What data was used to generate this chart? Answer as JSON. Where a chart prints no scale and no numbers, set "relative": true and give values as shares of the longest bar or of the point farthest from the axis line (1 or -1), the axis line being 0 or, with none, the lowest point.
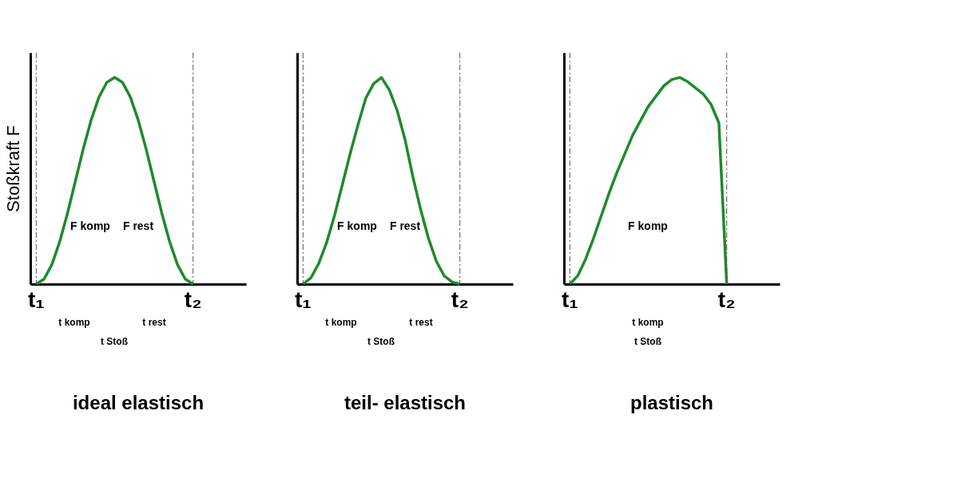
{
  "chart_data": [
    {
      "type": "line",
      "title": "ideal elastisch",
      "ylabel": "Stoßkraft F",
      "relative": true,
      "line_style": "solid",
      "marker": "none",
      "categories": [
        "t₁",
        null,
        null,
        null,
        null,
        null,
        null,
        null,
        null,
        null,
        null,
        null,
        null,
        null,
        null,
        null,
        null,
        null,
        null,
        null,
        "t₂",
        null,
        null,
        null,
        null,
        null,
        null
      ],
      "series": [
        {
          "color": "#1f8a2a",
          "values": [
            0,
            0.024,
            0.095,
            0.206,
            0.345,
            0.5,
            0.655,
            0.794,
            0.905,
            0.976,
            1,
            0.976,
            0.905,
            0.794,
            0.655,
            0.5,
            0.345,
            0.206,
            0.095,
            0.024,
            0,
            null,
            null,
            null,
            null,
            null,
            null
          ]
        }
      ],
      "ref_lines": [
        {
          "axis": "x",
          "value": "t₁",
          "line_style": "dashed",
          "color": "#555555"
        },
        {
          "axis": "x",
          "value": "t₂",
          "line_style": "dashed",
          "color": "#555555"
        }
      ],
      "annotations": [
        "F komp",
        "F rest",
        "t komp",
        "t rest",
        "t Stoß"
      ]
    },
    {
      "type": "line",
      "title": "teil- elastisch",
      "relative": true,
      "line_style": "solid",
      "marker": "none",
      "categories": [
        "t₁",
        null,
        null,
        null,
        null,
        null,
        null,
        null,
        null,
        null,
        null,
        null,
        null,
        null,
        null,
        null,
        null,
        null,
        null,
        null,
        "t₂",
        null,
        null,
        null,
        null,
        null,
        null
      ],
      "series": [
        {
          "color": "#1f8a2a",
          "values": [
            0,
            0.03,
            0.1,
            0.2,
            0.33,
            0.48,
            0.63,
            0.77,
            0.9,
            0.97,
            1,
            0.94,
            0.84,
            0.7,
            0.52,
            0.36,
            0.22,
            0.11,
            0.04,
            0.01,
            0,
            null,
            null,
            null,
            null,
            null,
            null
          ]
        }
      ],
      "ref_lines": [
        {
          "axis": "x",
          "value": "t₁",
          "line_style": "dashed",
          "color": "#555555"
        },
        {
          "axis": "x",
          "value": "t₂",
          "line_style": "dashed",
          "color": "#555555"
        }
      ],
      "annotations": [
        "F komp",
        "F rest",
        "t komp",
        "t rest",
        "t Stoß"
      ]
    },
    {
      "type": "line",
      "title": "plastisch",
      "relative": true,
      "line_style": "solid",
      "marker": "none",
      "categories": [
        "t₁",
        null,
        null,
        null,
        null,
        null,
        null,
        null,
        null,
        null,
        null,
        null,
        null,
        null,
        null,
        null,
        null,
        null,
        null,
        null,
        "t₂",
        null,
        null,
        null,
        null,
        null,
        null
      ],
      "series": [
        {
          "color": "#1f8a2a",
          "values": [
            0,
            0.04,
            0.12,
            0.22,
            0.33,
            0.44,
            0.54,
            0.63,
            0.72,
            0.79,
            0.86,
            0.91,
            0.96,
            0.99,
            1,
            0.98,
            0.95,
            0.92,
            0.87,
            0.78,
            0,
            null,
            null,
            null,
            null,
            null,
            null
          ]
        }
      ],
      "ref_lines": [
        {
          "axis": "x",
          "value": "t₁",
          "line_style": "dashed",
          "color": "#555555"
        },
        {
          "axis": "x",
          "value": "t₂",
          "line_style": "dashed",
          "color": "#555555"
        }
      ],
      "annotations": [
        "F komp",
        "t komp",
        "t Stoß"
      ]
    }
  ]
}
